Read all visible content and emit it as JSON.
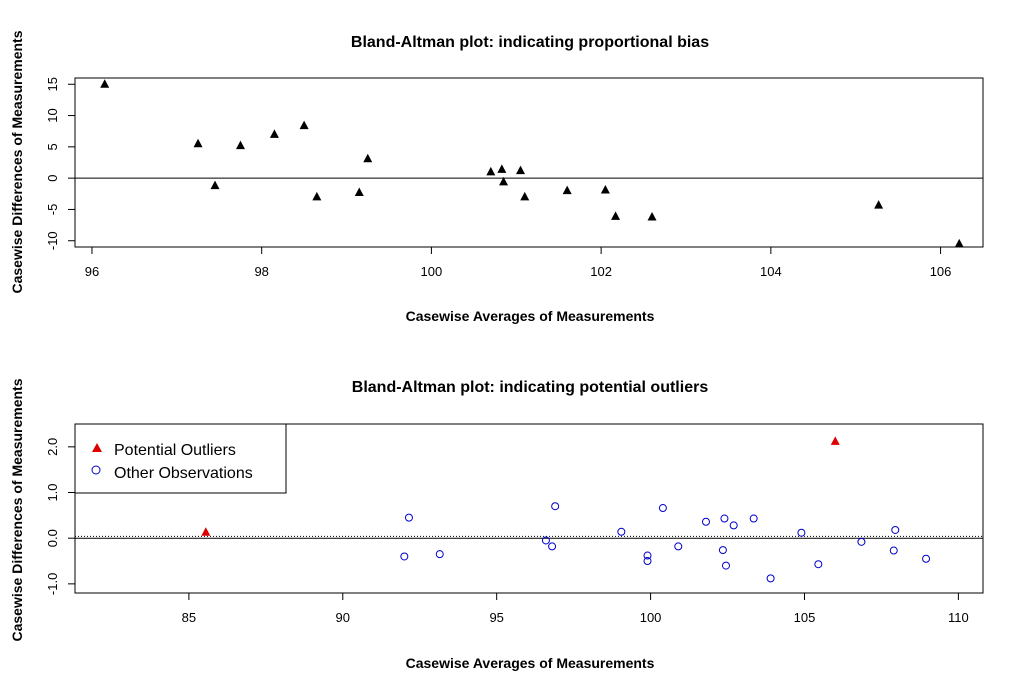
{
  "chart_data": [
    {
      "type": "scatter",
      "title": "Bland-Altman plot: indicating proportional bias",
      "xlabel": "Casewise Averages of Measurements",
      "ylabel": "Casewise Differences of Measurements",
      "xlim": [
        95.8,
        106.5
      ],
      "ylim": [
        -11,
        16
      ],
      "xticks": [
        "96",
        "98",
        "100",
        "102",
        "104",
        "106"
      ],
      "yticks": [
        "-10",
        "-5",
        "0",
        "5",
        "10",
        "15"
      ],
      "hline": 0,
      "marker": "filled-triangle",
      "marker_color": "#000000",
      "points": [
        {
          "x": 96.15,
          "y": 15.0
        },
        {
          "x": 97.25,
          "y": 5.5
        },
        {
          "x": 97.45,
          "y": -1.2
        },
        {
          "x": 97.75,
          "y": 5.2
        },
        {
          "x": 98.15,
          "y": 7.0
        },
        {
          "x": 98.5,
          "y": 8.4
        },
        {
          "x": 98.65,
          "y": -3.0
        },
        {
          "x": 99.15,
          "y": -2.3
        },
        {
          "x": 99.25,
          "y": 3.1
        },
        {
          "x": 100.7,
          "y": 1.0
        },
        {
          "x": 100.83,
          "y": 1.4
        },
        {
          "x": 100.85,
          "y": -0.6
        },
        {
          "x": 101.05,
          "y": 1.2
        },
        {
          "x": 101.1,
          "y": -3.0
        },
        {
          "x": 101.6,
          "y": -2.0
        },
        {
          "x": 102.05,
          "y": -1.9
        },
        {
          "x": 102.17,
          "y": -6.1
        },
        {
          "x": 102.6,
          "y": -6.2
        },
        {
          "x": 105.27,
          "y": -4.3
        },
        {
          "x": 106.22,
          "y": -10.5
        }
      ]
    },
    {
      "type": "scatter",
      "title": "Bland-Altman plot: indicating potential outliers",
      "xlabel": "Casewise Averages of Measurements",
      "ylabel": "Casewise Differences of Measurements",
      "xlim": [
        81.3,
        110.8
      ],
      "ylim": [
        -1.2,
        2.5
      ],
      "xticks": [
        "85",
        "90",
        "95",
        "100",
        "105",
        "110"
      ],
      "yticks": [
        "-1.0",
        "0.0",
        "1.0",
        "2.0"
      ],
      "hlines": [
        {
          "y": 0,
          "style": "solid"
        },
        {
          "y": 0.04,
          "style": "dotted"
        }
      ],
      "legend": {
        "position": "top-left",
        "entries": [
          "Potential Outliers",
          "Other Observations"
        ]
      },
      "series": [
        {
          "name": "Potential Outliers",
          "marker": "filled-triangle",
          "color": "#dd0000",
          "points": [
            {
              "x": 85.55,
              "y": 0.13
            },
            {
              "x": 106.0,
              "y": 2.12
            }
          ]
        },
        {
          "name": "Other Observations",
          "marker": "open-circle",
          "color": "#0000cc",
          "points": [
            {
              "x": 92.0,
              "y": -0.4
            },
            {
              "x": 92.15,
              "y": 0.45
            },
            {
              "x": 93.15,
              "y": -0.35
            },
            {
              "x": 96.6,
              "y": -0.05
            },
            {
              "x": 96.8,
              "y": -0.18
            },
            {
              "x": 96.9,
              "y": 0.7
            },
            {
              "x": 99.05,
              "y": 0.14
            },
            {
              "x": 99.9,
              "y": -0.38
            },
            {
              "x": 99.9,
              "y": -0.5
            },
            {
              "x": 100.4,
              "y": 0.66
            },
            {
              "x": 100.9,
              "y": -0.18
            },
            {
              "x": 101.8,
              "y": 0.36
            },
            {
              "x": 102.35,
              "y": -0.26
            },
            {
              "x": 102.4,
              "y": 0.43
            },
            {
              "x": 102.45,
              "y": -0.6
            },
            {
              "x": 102.7,
              "y": 0.28
            },
            {
              "x": 103.35,
              "y": 0.43
            },
            {
              "x": 103.9,
              "y": -0.88
            },
            {
              "x": 104.9,
              "y": 0.12
            },
            {
              "x": 105.45,
              "y": -0.57
            },
            {
              "x": 106.85,
              "y": -0.08
            },
            {
              "x": 107.9,
              "y": -0.27
            },
            {
              "x": 107.95,
              "y": 0.18
            },
            {
              "x": 108.95,
              "y": -0.45
            }
          ]
        }
      ]
    }
  ]
}
